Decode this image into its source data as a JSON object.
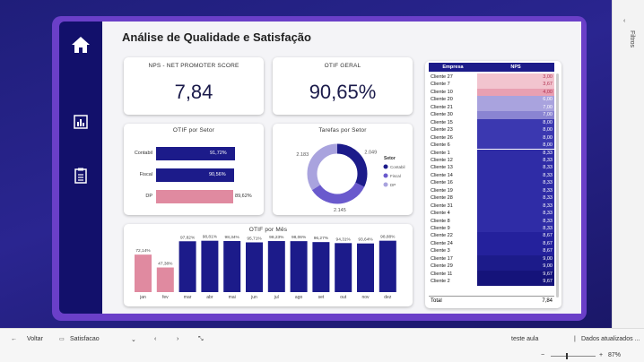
{
  "report": {
    "title": "Análise de Qualidade e Satisfação"
  },
  "kpis": {
    "nps": {
      "label": "NPS - NET PROMOTER SCORE",
      "value": "7,84"
    },
    "otif": {
      "label": "OTIF GERAL",
      "value": "90,65%"
    }
  },
  "otif_setor": {
    "title": "OTIF por Setor",
    "bars": [
      {
        "label": "Contabil",
        "value": 91.72,
        "text": "91,72%",
        "color": "#1c1b8a"
      },
      {
        "label": "Fiscal",
        "value": 90.56,
        "text": "90,56%",
        "color": "#1c1b8a"
      },
      {
        "label": "DP",
        "value": 89.62,
        "text": "89,62%",
        "color": "#e08aa0"
      }
    ]
  },
  "tarefas_setor": {
    "title": "Tarefas por Setor",
    "legend_title": "Setor",
    "slices": [
      {
        "name": "Contabil",
        "value": 2049,
        "label": "2.049",
        "color": "#1c1b8a"
      },
      {
        "name": "Fiscal",
        "value": 2145,
        "label": "2.145",
        "color": "#6a5acd"
      },
      {
        "name": "DP",
        "value": 2183,
        "label": "2.183",
        "color": "#a9a3de"
      }
    ]
  },
  "otif_mes": {
    "title": "OTIF por Mês",
    "months": [
      {
        "label": "jan",
        "value": 72.14,
        "text": "72,14%",
        "color": "#e08aa0"
      },
      {
        "label": "fev",
        "value": 47.38,
        "text": "47,38%",
        "color": "#e08aa0"
      },
      {
        "label": "mar",
        "value": 97.82,
        "text": "97,82%",
        "color": "#1c1b8a"
      },
      {
        "label": "abr",
        "value": 98.81,
        "text": "98,81%",
        "color": "#1c1b8a"
      },
      {
        "label": "mai",
        "value": 98.34,
        "text": "98,34%",
        "color": "#1c1b8a"
      },
      {
        "label": "jun",
        "value": 95.71,
        "text": "95,71%",
        "color": "#1c1b8a"
      },
      {
        "label": "jul",
        "value": 98.23,
        "text": "98,23%",
        "color": "#1c1b8a"
      },
      {
        "label": "ago",
        "value": 98.06,
        "text": "98,06%",
        "color": "#1c1b8a"
      },
      {
        "label": "set",
        "value": 96.27,
        "text": "96,27%",
        "color": "#1c1b8a"
      },
      {
        "label": "out",
        "value": 94.31,
        "text": "94,31%",
        "color": "#1c1b8a"
      },
      {
        "label": "nov",
        "value": 93.64,
        "text": "93,64%",
        "color": "#1c1b8a"
      },
      {
        "label": "dez",
        "value": 98.88,
        "text": "98,88%",
        "color": "#1c1b8a"
      }
    ]
  },
  "nps_table": {
    "headers": [
      "Empresa",
      "NPS"
    ],
    "rows": [
      {
        "empresa": "Cliente 27",
        "nps": "3,00",
        "bg": "#f2c4cf"
      },
      {
        "empresa": "Cliente 7",
        "nps": "3,67",
        "bg": "#f2c4cf"
      },
      {
        "empresa": "Cliente 10",
        "nps": "4,00",
        "bg": "#e9a0b2"
      },
      {
        "empresa": "Cliente 20",
        "nps": "6,00",
        "bg": "#a9a3de"
      },
      {
        "empresa": "Cliente 21",
        "nps": "7,00",
        "bg": "#a9a3de"
      },
      {
        "empresa": "Cliente 30",
        "nps": "7,00",
        "bg": "#8a84d2"
      },
      {
        "empresa": "Cliente 15",
        "nps": "8,00",
        "bg": "#3b38b0"
      },
      {
        "empresa": "Cliente 23",
        "nps": "8,00",
        "bg": "#3b38b0"
      },
      {
        "empresa": "Cliente 26",
        "nps": "8,00",
        "bg": "#3b38b0"
      },
      {
        "empresa": "Cliente 6",
        "nps": "8,00",
        "bg": "#3b38b0"
      },
      {
        "empresa": "Cliente 1",
        "nps": "8,33",
        "bg": "#2f2ca6"
      },
      {
        "empresa": "Cliente 12",
        "nps": "8,33",
        "bg": "#2f2ca6"
      },
      {
        "empresa": "Cliente 13",
        "nps": "8,33",
        "bg": "#2f2ca6"
      },
      {
        "empresa": "Cliente 14",
        "nps": "8,33",
        "bg": "#2f2ca6"
      },
      {
        "empresa": "Cliente 16",
        "nps": "8,33",
        "bg": "#2f2ca6"
      },
      {
        "empresa": "Cliente 19",
        "nps": "8,33",
        "bg": "#2f2ca6"
      },
      {
        "empresa": "Cliente 28",
        "nps": "8,33",
        "bg": "#2f2ca6"
      },
      {
        "empresa": "Cliente 31",
        "nps": "8,33",
        "bg": "#2f2ca6"
      },
      {
        "empresa": "Cliente 4",
        "nps": "8,33",
        "bg": "#2f2ca6"
      },
      {
        "empresa": "Cliente 8",
        "nps": "8,33",
        "bg": "#2f2ca6"
      },
      {
        "empresa": "Cliente 9",
        "nps": "8,33",
        "bg": "#2f2ca6"
      },
      {
        "empresa": "Cliente 22",
        "nps": "8,67",
        "bg": "#24219c"
      },
      {
        "empresa": "Cliente 24",
        "nps": "8,67",
        "bg": "#24219c"
      },
      {
        "empresa": "Cliente 3",
        "nps": "8,67",
        "bg": "#24219c"
      },
      {
        "empresa": "Cliente 17",
        "nps": "9,00",
        "bg": "#1c1b8a"
      },
      {
        "empresa": "Cliente 29",
        "nps": "9,00",
        "bg": "#1c1b8a"
      },
      {
        "empresa": "Cliente 11",
        "nps": "9,67",
        "bg": "#15137a"
      },
      {
        "empresa": "Cliente 2",
        "nps": "9,67",
        "bg": "#15137a"
      }
    ],
    "total_label": "Total",
    "total_value": "7,84"
  },
  "toolbar": {
    "back": "Voltar",
    "page": "Satisfacao",
    "workspace": "teste aula",
    "updated": "Dados atualizados ...",
    "zoom": "87%"
  },
  "side_panel": {
    "label": "Filtros"
  },
  "colors": {
    "navy": "#1c1b8a",
    "pink": "#e08aa0",
    "frame": "#6a3fc8"
  }
}
